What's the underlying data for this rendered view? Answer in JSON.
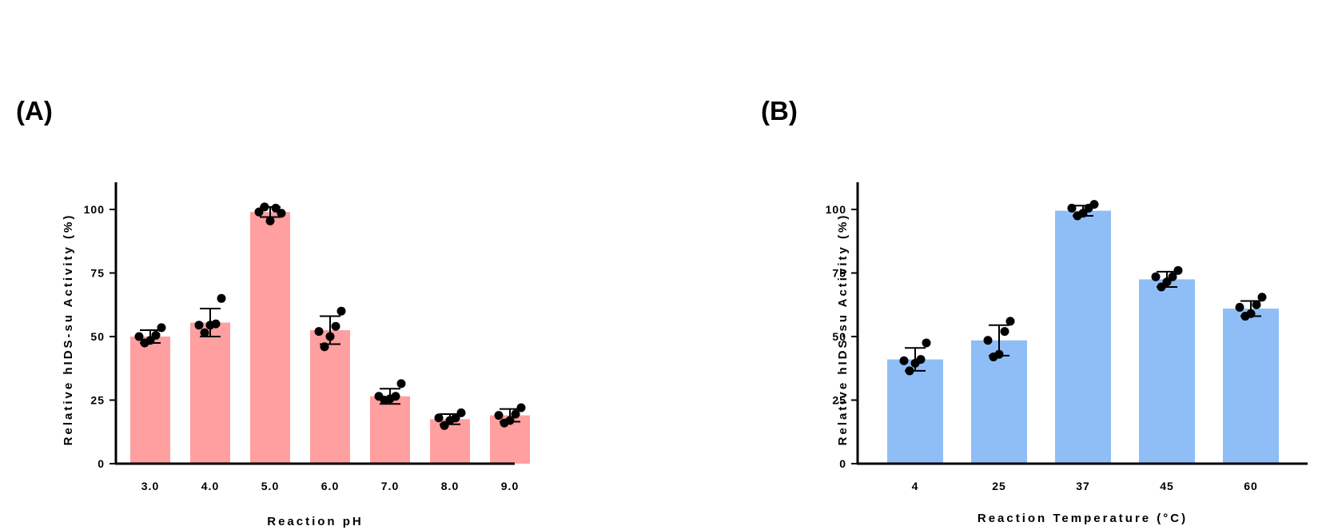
{
  "panels": {
    "a": "(A)",
    "b": "(B)"
  },
  "chart_data": [
    {
      "type": "bar",
      "panel": "(A)",
      "title": "",
      "xlabel": "Reaction pH",
      "ylabel": "Relative hIDS-su Activity (%)",
      "categories": [
        "3.0",
        "4.0",
        "5.0",
        "6.0",
        "7.0",
        "8.0",
        "9.0"
      ],
      "values": [
        50,
        55.5,
        99,
        52.5,
        26.5,
        17.5,
        19
      ],
      "error": [
        2.5,
        5.5,
        2,
        5.5,
        3,
        2,
        2.5
      ],
      "points": [
        [
          50,
          47.5,
          48.5,
          50.5,
          53.5
        ],
        [
          54.5,
          51.5,
          54.5,
          55,
          65
        ],
        [
          99,
          101,
          95.5,
          100.5,
          98.5
        ],
        [
          52,
          46,
          50,
          54,
          60
        ],
        [
          26.5,
          25,
          25.5,
          26.5,
          31.5
        ],
        [
          18,
          15,
          17,
          18,
          20
        ],
        [
          19,
          16,
          17,
          19.5,
          22
        ]
      ],
      "ylim": [
        0,
        110
      ],
      "yticks": [
        "0",
        "25",
        "50",
        "75",
        "100"
      ],
      "color": "#ff9f9f"
    },
    {
      "type": "bar",
      "panel": "(B)",
      "title": "",
      "xlabel": "Reaction Temperature (°C)",
      "ylabel": "Relative hIDS-su Activity (%)",
      "categories": [
        "4",
        "25",
        "37",
        "45",
        "60"
      ],
      "values": [
        41,
        48.5,
        99.5,
        72.5,
        61
      ],
      "error": [
        4.5,
        6,
        2,
        3,
        3
      ],
      "points": [
        [
          40.5,
          36.5,
          39.5,
          41,
          47.5
        ],
        [
          48.5,
          42,
          43,
          52,
          56
        ],
        [
          100.5,
          97.5,
          98.5,
          100.5,
          102
        ],
        [
          73.5,
          69.5,
          71.5,
          73.5,
          76
        ],
        [
          61.5,
          58,
          59,
          62.5,
          65.5
        ]
      ],
      "ylim": [
        0,
        110
      ],
      "yticks": [
        "0",
        "25",
        "50",
        "75",
        "100"
      ],
      "color": "#8fbef7"
    }
  ]
}
